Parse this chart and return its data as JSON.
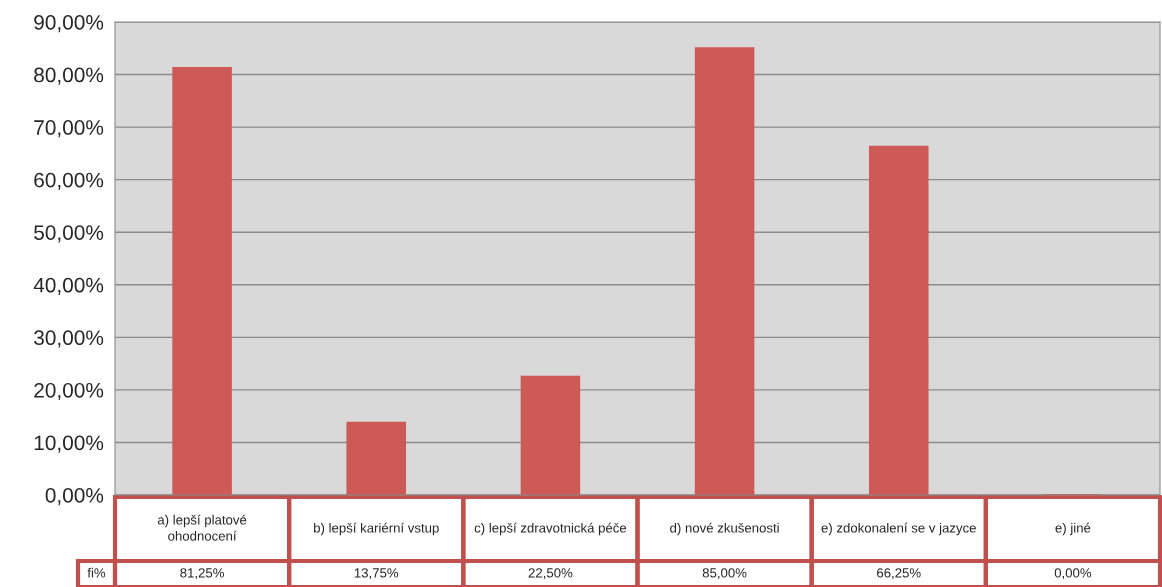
{
  "chart_data": {
    "type": "bar",
    "categories": [
      "a) lepší platové ohodnocení",
      "b) lepší kariérní vstup",
      "c) lepší zdravotnická péče",
      "d) nové zkušenosti",
      "e) zdokonalení se v jazyce",
      "e) jiné"
    ],
    "series": [
      {
        "name": "fi%",
        "color": "#cd5a57",
        "values": [
          81.25,
          13.75,
          22.5,
          85.0,
          66.25,
          0.0
        ],
        "value_labels": [
          "81,25%",
          "13,75%",
          "22,50%",
          "85,00%",
          "66,25%",
          "0,00%"
        ]
      }
    ],
    "ylim": [
      0,
      90
    ],
    "yticks": [
      {
        "value": 0,
        "label": "0,00%"
      },
      {
        "value": 10,
        "label": "10,00%"
      },
      {
        "value": 20,
        "label": "20,00%"
      },
      {
        "value": 30,
        "label": "30,00%"
      },
      {
        "value": 40,
        "label": "40,00%"
      },
      {
        "value": 50,
        "label": "50,00%"
      },
      {
        "value": 60,
        "label": "60,00%"
      },
      {
        "value": 70,
        "label": "70,00%"
      },
      {
        "value": 80,
        "label": "80,00%"
      },
      {
        "value": 90,
        "label": "90,00%"
      }
    ],
    "grid": "y",
    "legend": false
  }
}
